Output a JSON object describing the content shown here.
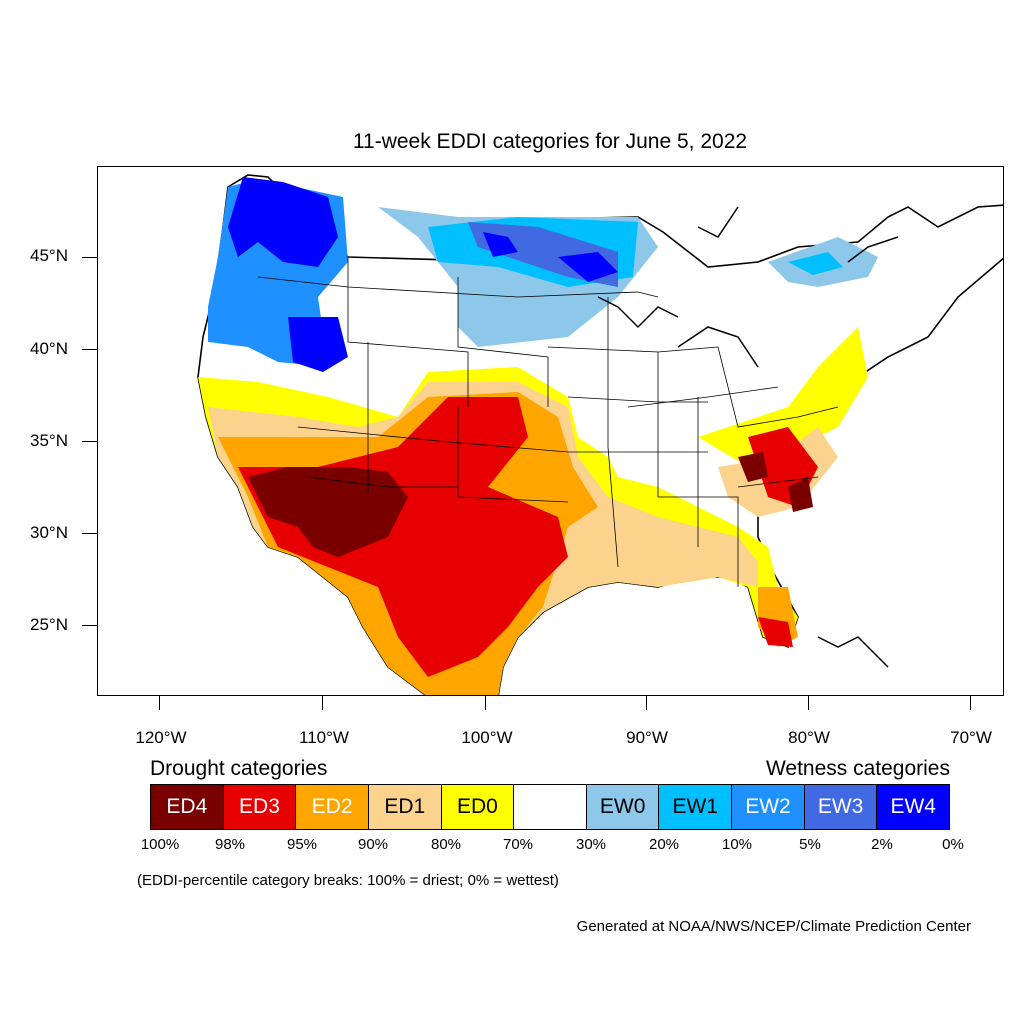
{
  "title": "11-week EDDI categories for June 5, 2022",
  "map": {
    "latitude_labels": [
      "45°N",
      "40°N",
      "35°N",
      "30°N",
      "25°N"
    ],
    "longitude_labels": [
      "120°W",
      "110°W",
      "100°W",
      "90°W",
      "80°W",
      "70°W"
    ]
  },
  "legend": {
    "drought_title": "Drought categories",
    "wetness_title": "Wetness categories",
    "categories": [
      {
        "label": "ED4",
        "color": "#7a0000",
        "text_color": "#ffffff"
      },
      {
        "label": "ED3",
        "color": "#e60000",
        "text_color": "#ffffff"
      },
      {
        "label": "ED2",
        "color": "#ffa500",
        "text_color": "#ffffff"
      },
      {
        "label": "ED1",
        "color": "#fcd38d",
        "text_color": "#000000"
      },
      {
        "label": "ED0",
        "color": "#ffff00",
        "text_color": "#000000"
      },
      {
        "label": "",
        "color": "#ffffff",
        "text_color": "#000000"
      },
      {
        "label": "EW0",
        "color": "#8dc8eb",
        "text_color": "#000000"
      },
      {
        "label": "EW1",
        "color": "#00bfff",
        "text_color": "#000000"
      },
      {
        "label": "EW2",
        "color": "#1e90ff",
        "text_color": "#ffffff"
      },
      {
        "label": "EW3",
        "color": "#4169e1",
        "text_color": "#ffffff"
      },
      {
        "label": "EW4",
        "color": "#0000ff",
        "text_color": "#ffffff"
      }
    ],
    "breaks": [
      "100%",
      "98%",
      "95%",
      "90%",
      "80%",
      "70%",
      "30%",
      "20%",
      "10%",
      "5%",
      "2%",
      "0%"
    ]
  },
  "note": "(EDDI-percentile category breaks: 100% = driest; 0% = wettest)",
  "credit": "Generated at NOAA/NWS/NCEP/Climate Prediction Center"
}
